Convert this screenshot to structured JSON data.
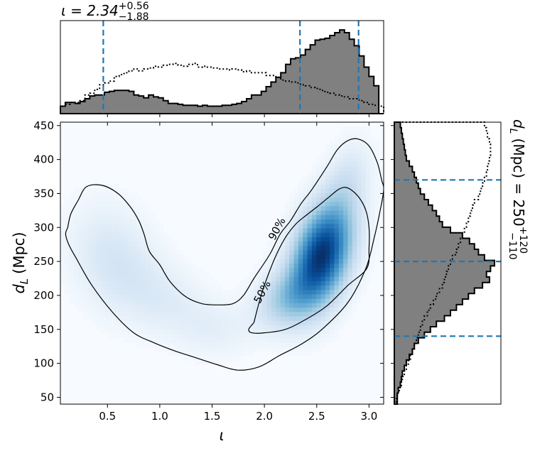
{
  "chart_data": [
    {
      "panel": "joint",
      "type": "heatmap",
      "xlabel": "ι",
      "ylabel_main": "d",
      "ylabel_sub": "L",
      "ylabel_unit": "(Mpc)",
      "xlim": [
        0.05,
        3.14
      ],
      "ylim": [
        40,
        455
      ],
      "xticks": [
        0.5,
        1.0,
        1.5,
        2.0,
        2.5,
        3.0
      ],
      "xtick_labels": [
        "0.5",
        "1.0",
        "1.5",
        "2.0",
        "2.5",
        "3.0"
      ],
      "yticks": [
        50,
        100,
        150,
        200,
        250,
        300,
        350,
        400,
        450
      ],
      "ytick_labels": [
        "50",
        "100",
        "150",
        "200",
        "250",
        "300",
        "350",
        "400",
        "450"
      ],
      "colormap": "Blues",
      "density_blobs": [
        {
          "x": 2.55,
          "y": 260,
          "sx": 0.2,
          "sy": 52,
          "rho": 0.35,
          "w": 1.0
        },
        {
          "x": 2.2,
          "y": 195,
          "sx": 0.2,
          "sy": 30,
          "rho": 0.2,
          "w": 0.3
        },
        {
          "x": 0.55,
          "y": 255,
          "sx": 0.28,
          "sy": 55,
          "rho": -0.2,
          "w": 0.16
        },
        {
          "x": 1.05,
          "y": 195,
          "sx": 0.3,
          "sy": 40,
          "rho": -0.3,
          "w": 0.11
        },
        {
          "x": 1.55,
          "y": 150,
          "sx": 0.25,
          "sy": 28,
          "rho": 0,
          "w": 0.08
        },
        {
          "x": 2.8,
          "y": 370,
          "sx": 0.15,
          "sy": 40,
          "rho": 0.3,
          "w": 0.15
        }
      ],
      "contours": [
        {
          "level": "90%",
          "points": [
            [
              0.12,
              300
            ],
            [
              0.1,
              290
            ],
            [
              0.13,
              275
            ],
            [
              0.2,
              255
            ],
            [
              0.35,
              215
            ],
            [
              0.55,
              175
            ],
            [
              0.75,
              145
            ],
            [
              0.95,
              130
            ],
            [
              1.15,
              118
            ],
            [
              1.35,
              108
            ],
            [
              1.55,
              98
            ],
            [
              1.75,
              90
            ],
            [
              1.95,
              95
            ],
            [
              2.15,
              112
            ],
            [
              2.35,
              128
            ],
            [
              2.55,
              150
            ],
            [
              2.8,
              190
            ],
            [
              2.97,
              240
            ],
            [
              3.05,
              285
            ],
            [
              3.1,
              320
            ],
            [
              3.14,
              355
            ],
            [
              3.12,
              370
            ],
            [
              3.08,
              395
            ],
            [
              3.0,
              420
            ],
            [
              2.9,
              430
            ],
            [
              2.8,
              428
            ],
            [
              2.7,
              415
            ],
            [
              2.6,
              390
            ],
            [
              2.45,
              355
            ],
            [
              2.35,
              335
            ],
            [
              2.25,
              310
            ],
            [
              2.15,
              290
            ],
            [
              2.05,
              260
            ],
            [
              1.9,
              225
            ],
            [
              1.8,
              200
            ],
            [
              1.7,
              188
            ],
            [
              1.55,
              186
            ],
            [
              1.4,
              188
            ],
            [
              1.25,
              198
            ],
            [
              1.1,
              220
            ],
            [
              1.0,
              245
            ],
            [
              0.9,
              265
            ],
            [
              0.85,
              290
            ],
            [
              0.8,
              310
            ],
            [
              0.72,
              330
            ],
            [
              0.6,
              350
            ],
            [
              0.45,
              362
            ],
            [
              0.3,
              360
            ],
            [
              0.22,
              340
            ],
            [
              0.15,
              320
            ],
            [
              0.12,
              300
            ]
          ]
        },
        {
          "level": "50%",
          "points": [
            [
              1.9,
              160
            ],
            [
              1.85,
              150
            ],
            [
              1.88,
              145
            ],
            [
              2.0,
              145
            ],
            [
              2.2,
              150
            ],
            [
              2.4,
              165
            ],
            [
              2.6,
              185
            ],
            [
              2.8,
              215
            ],
            [
              2.98,
              240
            ],
            [
              3.0,
              270
            ],
            [
              3.0,
              300
            ],
            [
              2.97,
              325
            ],
            [
              2.9,
              345
            ],
            [
              2.8,
              358
            ],
            [
              2.72,
              357
            ],
            [
              2.62,
              345
            ],
            [
              2.5,
              330
            ],
            [
              2.4,
              318
            ],
            [
              2.3,
              305
            ],
            [
              2.2,
              285
            ],
            [
              2.1,
              255
            ],
            [
              2.0,
              215
            ],
            [
              1.95,
              190
            ],
            [
              1.9,
              160
            ]
          ]
        }
      ],
      "contour_labels": [
        {
          "text": "90%",
          "x": 2.12,
          "y": 298,
          "angle": -62
        },
        {
          "text": "50%",
          "x": 1.98,
          "y": 205,
          "angle": -62
        }
      ]
    },
    {
      "panel": "top-marginal",
      "type": "bar",
      "title_main": "ι = 2.34",
      "title_sup": "+0.56",
      "title_sub": "−1.88",
      "bin_edges_range": [
        0.05,
        3.14
      ],
      "filled_hist": [
        0.08,
        0.12,
        0.12,
        0.11,
        0.13,
        0.16,
        0.19,
        0.2,
        0.2,
        0.23,
        0.24,
        0.25,
        0.25,
        0.25,
        0.24,
        0.2,
        0.19,
        0.17,
        0.2,
        0.18,
        0.17,
        0.14,
        0.11,
        0.11,
        0.1,
        0.09,
        0.09,
        0.09,
        0.08,
        0.09,
        0.08,
        0.08,
        0.08,
        0.09,
        0.09,
        0.1,
        0.11,
        0.13,
        0.16,
        0.2,
        0.2,
        0.24,
        0.29,
        0.34,
        0.39,
        0.44,
        0.53,
        0.59,
        0.6,
        0.63,
        0.69,
        0.74,
        0.79,
        0.8,
        0.81,
        0.84,
        0.87,
        0.9,
        0.87,
        0.8,
        0.73,
        0.62,
        0.5,
        0.4,
        0.3,
        0.0
      ],
      "dotted_hist": [
        0.08,
        0.1,
        0.12,
        0.12,
        0.14,
        0.2,
        0.22,
        0.26,
        0.31,
        0.33,
        0.35,
        0.4,
        0.42,
        0.44,
        0.46,
        0.48,
        0.46,
        0.48,
        0.49,
        0.51,
        0.5,
        0.52,
        0.53,
        0.54,
        0.52,
        0.51,
        0.53,
        0.54,
        0.5,
        0.51,
        0.5,
        0.49,
        0.48,
        0.48,
        0.47,
        0.48,
        0.47,
        0.45,
        0.46,
        0.44,
        0.44,
        0.44,
        0.41,
        0.41,
        0.39,
        0.36,
        0.35,
        0.34,
        0.33,
        0.31,
        0.3,
        0.28,
        0.27,
        0.25,
        0.23,
        0.22,
        0.2,
        0.19,
        0.18,
        0.16,
        0.16,
        0.14,
        0.12,
        0.1,
        0.09,
        0.08
      ],
      "quantiles": [
        0.46,
        2.34,
        2.9
      ]
    },
    {
      "panel": "right-marginal",
      "type": "bar",
      "title_main": "d",
      "title_sub_L": "L",
      "title_rest": "(Mpc) = 250",
      "title_sup": "+120",
      "title_sub": "−110",
      "bin_edges_range": [
        40,
        455
      ],
      "filled_hist": [
        0.03,
        0.03,
        0.04,
        0.06,
        0.07,
        0.08,
        0.1,
        0.12,
        0.15,
        0.18,
        0.2,
        0.24,
        0.3,
        0.36,
        0.42,
        0.5,
        0.56,
        0.62,
        0.68,
        0.74,
        0.8,
        0.88,
        0.95,
        0.92,
        0.96,
        1.0,
        0.9,
        0.84,
        0.8,
        0.75,
        0.68,
        0.56,
        0.48,
        0.45,
        0.42,
        0.38,
        0.34,
        0.3,
        0.26,
        0.24,
        0.22,
        0.2,
        0.18,
        0.15,
        0.12,
        0.11,
        0.1,
        0.09,
        0.08,
        0.07,
        0.06
      ],
      "dotted_hist": [
        0.02,
        0.03,
        0.05,
        0.07,
        0.08,
        0.1,
        0.12,
        0.14,
        0.16,
        0.18,
        0.2,
        0.22,
        0.24,
        0.26,
        0.28,
        0.3,
        0.33,
        0.36,
        0.39,
        0.42,
        0.45,
        0.48,
        0.5,
        0.52,
        0.54,
        0.56,
        0.58,
        0.62,
        0.64,
        0.66,
        0.68,
        0.7,
        0.72,
        0.74,
        0.76,
        0.78,
        0.8,
        0.84,
        0.86,
        0.88,
        0.9,
        0.92,
        0.93,
        0.94,
        0.95,
        0.96,
        0.96,
        0.95,
        0.93,
        0.92,
        0.9
      ],
      "quantiles": [
        140,
        250,
        370
      ]
    }
  ],
  "style": {
    "quantile_color": "#1f77b4",
    "hist_fill": "#808080",
    "contour_color": "#000000"
  }
}
